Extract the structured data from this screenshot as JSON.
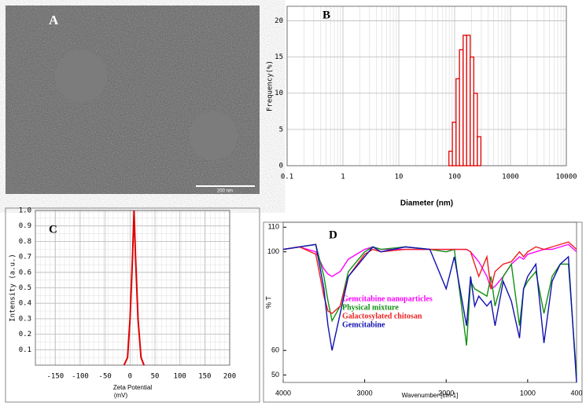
{
  "image": {
    "label": "A",
    "scale_bar": "200 nm"
  },
  "chart_data": [
    {
      "type": "histogram",
      "label": "B",
      "x_label": "Diameter (nm)",
      "y_label": "Frequency(%)",
      "bins": [
        79,
        91,
        106,
        122,
        142,
        164,
        190,
        220,
        255,
        295
      ],
      "values": [
        2,
        6,
        12,
        16,
        18,
        18,
        15,
        10,
        4
      ],
      "color": "#e00000",
      "log_x": true,
      "xlim": [
        0.1,
        10000
      ],
      "xticks": [
        0.1,
        1,
        10,
        100,
        1000,
        10000
      ],
      "ylim": [
        0,
        22
      ],
      "yticks": [
        0,
        5,
        10,
        15,
        20
      ],
      "grid": true
    },
    {
      "type": "line",
      "label": "C",
      "x_label": "Zeta Potential",
      "x_unit": "(mV)",
      "y_label": "Intensity (a.u.)",
      "x": [
        -12,
        -5,
        0,
        5,
        8,
        11,
        16,
        22,
        28
      ],
      "values": [
        0,
        0.05,
        0.3,
        0.7,
        1.0,
        0.7,
        0.3,
        0.05,
        0
      ],
      "color": "#e00000",
      "xlim": [
        -190,
        200
      ],
      "xticks": [
        -150,
        -100,
        -50,
        0,
        50,
        100,
        150,
        200
      ],
      "ylim": [
        0,
        1
      ],
      "yticks": [
        0.1,
        0.2,
        0.3,
        0.4,
        0.5,
        0.6,
        0.7,
        0.8,
        0.9,
        {
          "value": 1,
          "label": "1.0"
        }
      ],
      "grid": true
    },
    {
      "type": "multiline",
      "label": "D",
      "x_label": "Wavenumber [cm-1]",
      "y_label": "% T",
      "x": [
        4000,
        3800,
        3600,
        3500,
        3450,
        3400,
        3300,
        3200,
        3000,
        2900,
        2800,
        2500,
        2200,
        2000,
        1900,
        1750,
        1700,
        1650,
        1600,
        1500,
        1450,
        1400,
        1300,
        1200,
        1100,
        1050,
        1000,
        900,
        800,
        700,
        600,
        500,
        400
      ],
      "series": [
        {
          "name": "Gemcitabine nanoparticles",
          "color": "#ff00ff",
          "values": [
            101,
            102,
            100,
            93,
            91,
            90,
            92,
            97,
            101,
            102,
            101,
            101,
            101,
            101,
            101,
            101,
            100,
            98,
            96,
            90,
            85,
            86,
            90,
            95,
            98,
            97,
            99,
            100,
            101,
            101,
            102,
            103,
            100
          ]
        },
        {
          "name": "Physical mixture",
          "color": "#109010",
          "values": [
            101,
            102,
            103,
            90,
            80,
            72,
            78,
            92,
            100,
            102,
            101,
            102,
            101,
            100,
            101,
            62,
            88,
            85,
            84,
            82,
            90,
            78,
            90,
            95,
            70,
            85,
            88,
            92,
            75,
            90,
            95,
            95,
            50
          ]
        },
        {
          "name": "Galactosylated chitosan",
          "color": "#ee2020",
          "values": [
            101,
            102,
            99,
            82,
            76,
            75,
            78,
            90,
            99,
            101,
            100,
            101,
            101,
            101,
            101,
            101,
            100,
            95,
            90,
            98,
            85,
            92,
            95,
            96,
            100,
            98,
            100,
            102,
            101,
            102,
            103,
            104,
            101
          ]
        },
        {
          "name": "Gemcitabine",
          "color": "#1010b0",
          "values": [
            101,
            102,
            103,
            85,
            70,
            60,
            75,
            90,
            98,
            102,
            100,
            102,
            101,
            85,
            98,
            70,
            90,
            78,
            82,
            78,
            80,
            70,
            88,
            80,
            65,
            85,
            90,
            95,
            63,
            88,
            95,
            98,
            47
          ]
        }
      ],
      "xlim": [
        4000,
        400
      ],
      "xticks": [
        4000,
        3000,
        2000,
        1000,
        400
      ],
      "ylim": [
        47,
        112
      ],
      "yticks": [
        50,
        60,
        100,
        110
      ],
      "grid": false
    }
  ]
}
